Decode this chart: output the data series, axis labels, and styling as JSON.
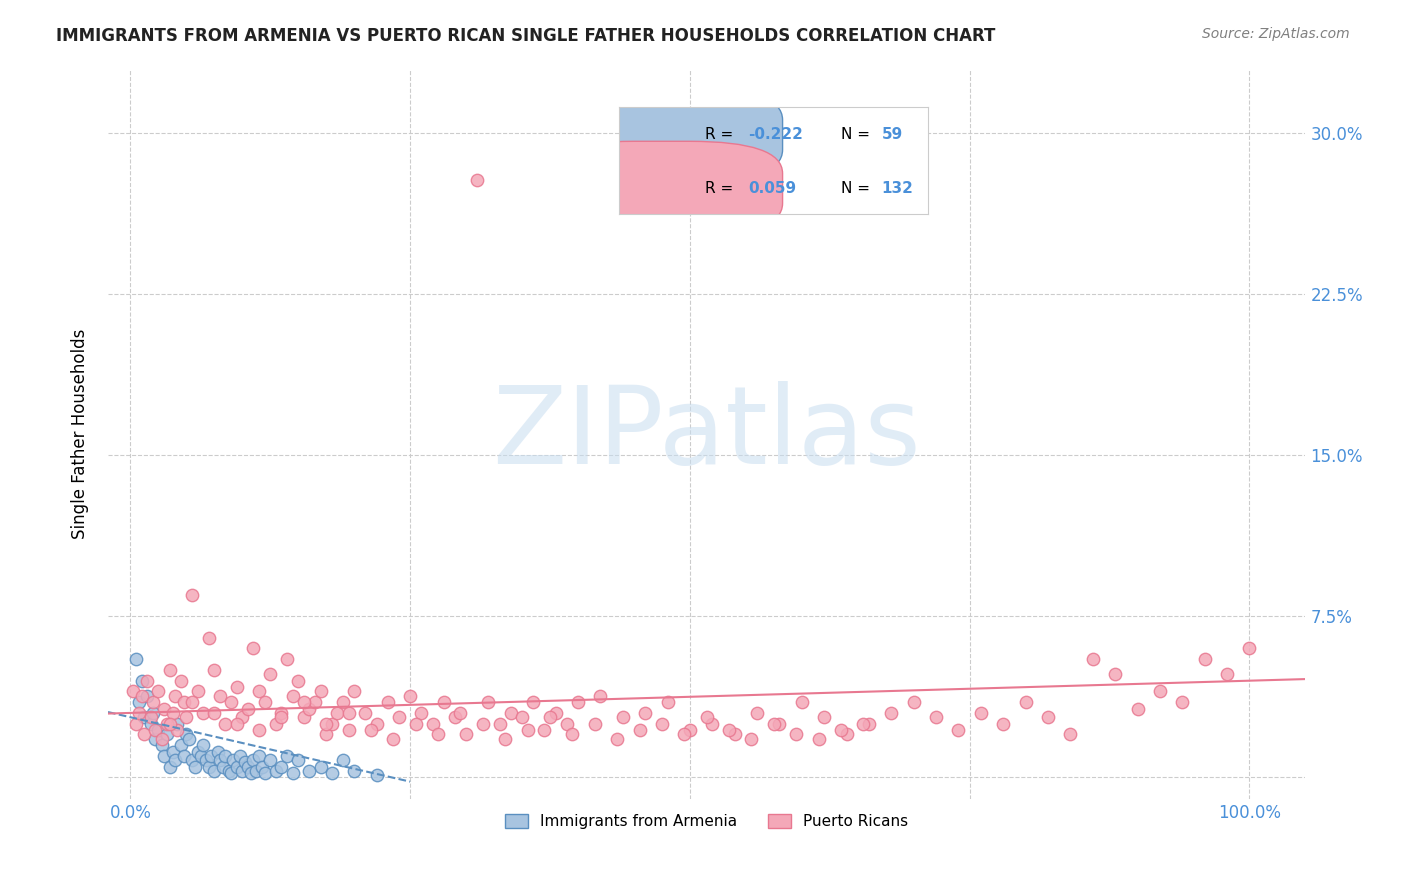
{
  "title": "IMMIGRANTS FROM ARMENIA VS PUERTO RICAN SINGLE FATHER HOUSEHOLDS CORRELATION CHART",
  "source": "Source: ZipAtlas.com",
  "xlabel": "",
  "ylabel": "Single Father Households",
  "x_ticks": [
    0.0,
    0.25,
    0.5,
    0.75,
    1.0
  ],
  "x_tick_labels": [
    "0.0%",
    "",
    "",
    "",
    "100.0%"
  ],
  "y_ticks": [
    0.0,
    0.075,
    0.15,
    0.225,
    0.3
  ],
  "y_tick_labels": [
    "",
    "7.5%",
    "15.0%",
    "22.5%",
    "30.0%"
  ],
  "xlim": [
    -0.02,
    1.05
  ],
  "ylim": [
    -0.01,
    0.33
  ],
  "blue_R": -0.222,
  "blue_N": 59,
  "pink_R": 0.059,
  "pink_N": 132,
  "blue_color": "#a8c4e0",
  "pink_color": "#f4a8b8",
  "blue_line_color": "#5a8fc0",
  "pink_line_color": "#e87890",
  "grid_color": "#cccccc",
  "title_color": "#222222",
  "axis_label_color": "#4a90d9",
  "watermark_text": "ZIPatlas",
  "legend_color": "#4a90d9",
  "blue_scatter_x": [
    0.005,
    0.008,
    0.01,
    0.012,
    0.015,
    0.018,
    0.02,
    0.022,
    0.025,
    0.028,
    0.03,
    0.033,
    0.035,
    0.038,
    0.04,
    0.042,
    0.045,
    0.048,
    0.05,
    0.052,
    0.055,
    0.058,
    0.06,
    0.063,
    0.065,
    0.068,
    0.07,
    0.072,
    0.075,
    0.078,
    0.08,
    0.083,
    0.085,
    0.088,
    0.09,
    0.092,
    0.095,
    0.098,
    0.1,
    0.102,
    0.105,
    0.108,
    0.11,
    0.112,
    0.115,
    0.118,
    0.12,
    0.125,
    0.13,
    0.135,
    0.14,
    0.145,
    0.15,
    0.16,
    0.17,
    0.18,
    0.19,
    0.2,
    0.22
  ],
  "blue_scatter_y": [
    0.055,
    0.035,
    0.045,
    0.028,
    0.038,
    0.025,
    0.03,
    0.018,
    0.022,
    0.015,
    0.01,
    0.02,
    0.005,
    0.012,
    0.008,
    0.025,
    0.015,
    0.01,
    0.02,
    0.018,
    0.008,
    0.005,
    0.012,
    0.01,
    0.015,
    0.008,
    0.005,
    0.01,
    0.003,
    0.012,
    0.008,
    0.005,
    0.01,
    0.003,
    0.002,
    0.008,
    0.005,
    0.01,
    0.003,
    0.007,
    0.005,
    0.002,
    0.008,
    0.003,
    0.01,
    0.005,
    0.002,
    0.008,
    0.003,
    0.005,
    0.01,
    0.002,
    0.008,
    0.003,
    0.005,
    0.002,
    0.008,
    0.003,
    0.001
  ],
  "pink_scatter_x": [
    0.002,
    0.005,
    0.008,
    0.01,
    0.012,
    0.015,
    0.018,
    0.02,
    0.022,
    0.025,
    0.028,
    0.03,
    0.033,
    0.035,
    0.038,
    0.04,
    0.042,
    0.045,
    0.048,
    0.05,
    0.055,
    0.06,
    0.065,
    0.07,
    0.075,
    0.08,
    0.085,
    0.09,
    0.095,
    0.1,
    0.105,
    0.11,
    0.115,
    0.12,
    0.125,
    0.13,
    0.135,
    0.14,
    0.145,
    0.15,
    0.155,
    0.16,
    0.165,
    0.17,
    0.175,
    0.18,
    0.185,
    0.19,
    0.195,
    0.2,
    0.21,
    0.22,
    0.23,
    0.24,
    0.25,
    0.26,
    0.27,
    0.28,
    0.29,
    0.3,
    0.31,
    0.32,
    0.33,
    0.34,
    0.35,
    0.36,
    0.37,
    0.38,
    0.39,
    0.4,
    0.42,
    0.44,
    0.46,
    0.48,
    0.5,
    0.52,
    0.54,
    0.56,
    0.58,
    0.6,
    0.62,
    0.64,
    0.66,
    0.68,
    0.7,
    0.72,
    0.74,
    0.76,
    0.78,
    0.8,
    0.82,
    0.84,
    0.86,
    0.88,
    0.9,
    0.92,
    0.94,
    0.96,
    0.98,
    1.0,
    0.035,
    0.055,
    0.075,
    0.095,
    0.115,
    0.135,
    0.155,
    0.175,
    0.195,
    0.215,
    0.235,
    0.255,
    0.275,
    0.295,
    0.315,
    0.335,
    0.355,
    0.375,
    0.395,
    0.415,
    0.435,
    0.455,
    0.475,
    0.495,
    0.515,
    0.535,
    0.555,
    0.575,
    0.595,
    0.615,
    0.635,
    0.655
  ],
  "pink_scatter_y": [
    0.04,
    0.025,
    0.03,
    0.038,
    0.02,
    0.045,
    0.028,
    0.035,
    0.022,
    0.04,
    0.018,
    0.032,
    0.025,
    0.05,
    0.03,
    0.038,
    0.022,
    0.045,
    0.035,
    0.028,
    0.085,
    0.04,
    0.03,
    0.065,
    0.05,
    0.038,
    0.025,
    0.035,
    0.042,
    0.028,
    0.032,
    0.06,
    0.04,
    0.035,
    0.048,
    0.025,
    0.03,
    0.055,
    0.038,
    0.045,
    0.028,
    0.032,
    0.035,
    0.04,
    0.02,
    0.025,
    0.03,
    0.035,
    0.022,
    0.04,
    0.03,
    0.025,
    0.035,
    0.028,
    0.038,
    0.03,
    0.025,
    0.035,
    0.028,
    0.02,
    0.278,
    0.035,
    0.025,
    0.03,
    0.028,
    0.035,
    0.022,
    0.03,
    0.025,
    0.035,
    0.038,
    0.028,
    0.03,
    0.035,
    0.022,
    0.025,
    0.02,
    0.03,
    0.025,
    0.035,
    0.028,
    0.02,
    0.025,
    0.03,
    0.035,
    0.028,
    0.022,
    0.03,
    0.025,
    0.035,
    0.028,
    0.02,
    0.055,
    0.048,
    0.032,
    0.04,
    0.035,
    0.055,
    0.048,
    0.06,
    0.025,
    0.035,
    0.03,
    0.025,
    0.022,
    0.028,
    0.035,
    0.025,
    0.03,
    0.022,
    0.018,
    0.025,
    0.02,
    0.03,
    0.025,
    0.018,
    0.022,
    0.028,
    0.02,
    0.025,
    0.018,
    0.022,
    0.025,
    0.02,
    0.028,
    0.022,
    0.018,
    0.025,
    0.02,
    0.018,
    0.022,
    0.025
  ]
}
